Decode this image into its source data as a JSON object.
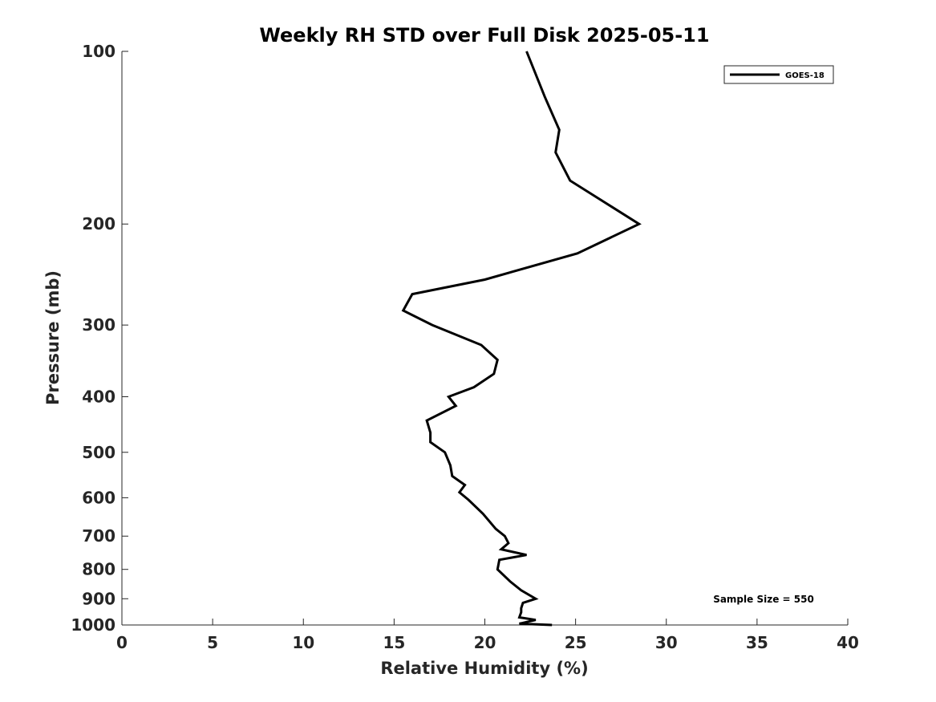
{
  "chart_data": {
    "type": "line",
    "title": "Weekly RH STD over Full Disk 2025-05-11",
    "xlabel": "Relative Humidity (%)",
    "ylabel": "Pressure (mb)",
    "xlim": [
      0,
      40
    ],
    "ylim": [
      100,
      1000
    ],
    "yscale": "log",
    "y_reversed": true,
    "grid": false,
    "legend_position": "top-right",
    "x_ticks": [
      0,
      5,
      10,
      15,
      20,
      25,
      30,
      35,
      40
    ],
    "x_tick_labels": [
      "0",
      "5",
      "10",
      "15",
      "20",
      "25",
      "30",
      "35",
      "40"
    ],
    "y_ticks": [
      100,
      200,
      300,
      400,
      500,
      600,
      700,
      800,
      900,
      1000
    ],
    "y_tick_labels": [
      "100",
      "200",
      "300",
      "400",
      "500",
      "600",
      "700",
      "800",
      "900",
      "1000"
    ],
    "annotation": "Sample Size = 550",
    "series": [
      {
        "name": "GOES-18",
        "color": "#000000",
        "x": [
          22.3,
          23.3,
          24.1,
          23.9,
          24.7,
          28.5,
          25.1,
          20.0,
          16.0,
          15.5,
          17.1,
          19.8,
          20.7,
          20.5,
          19.4,
          18.0,
          18.4,
          16.8,
          17.0,
          17.0,
          17.8,
          18.1,
          18.2,
          18.9,
          18.6,
          19.1,
          19.9,
          20.6,
          21.1,
          21.3,
          20.9,
          22.3,
          20.8,
          20.7,
          21.4,
          22.0,
          22.8,
          22.1,
          22.0,
          22.0,
          21.9,
          22.8,
          21.9,
          23.7
        ],
        "y": [
          100,
          120,
          137,
          150,
          168,
          200,
          225,
          250,
          265,
          283,
          300,
          325,
          345,
          365,
          385,
          400,
          415,
          440,
          462,
          480,
          500,
          527,
          550,
          570,
          587,
          605,
          640,
          680,
          700,
          720,
          738,
          755,
          770,
          800,
          840,
          870,
          900,
          915,
          935,
          950,
          970,
          980,
          995,
          1000
        ]
      }
    ]
  }
}
